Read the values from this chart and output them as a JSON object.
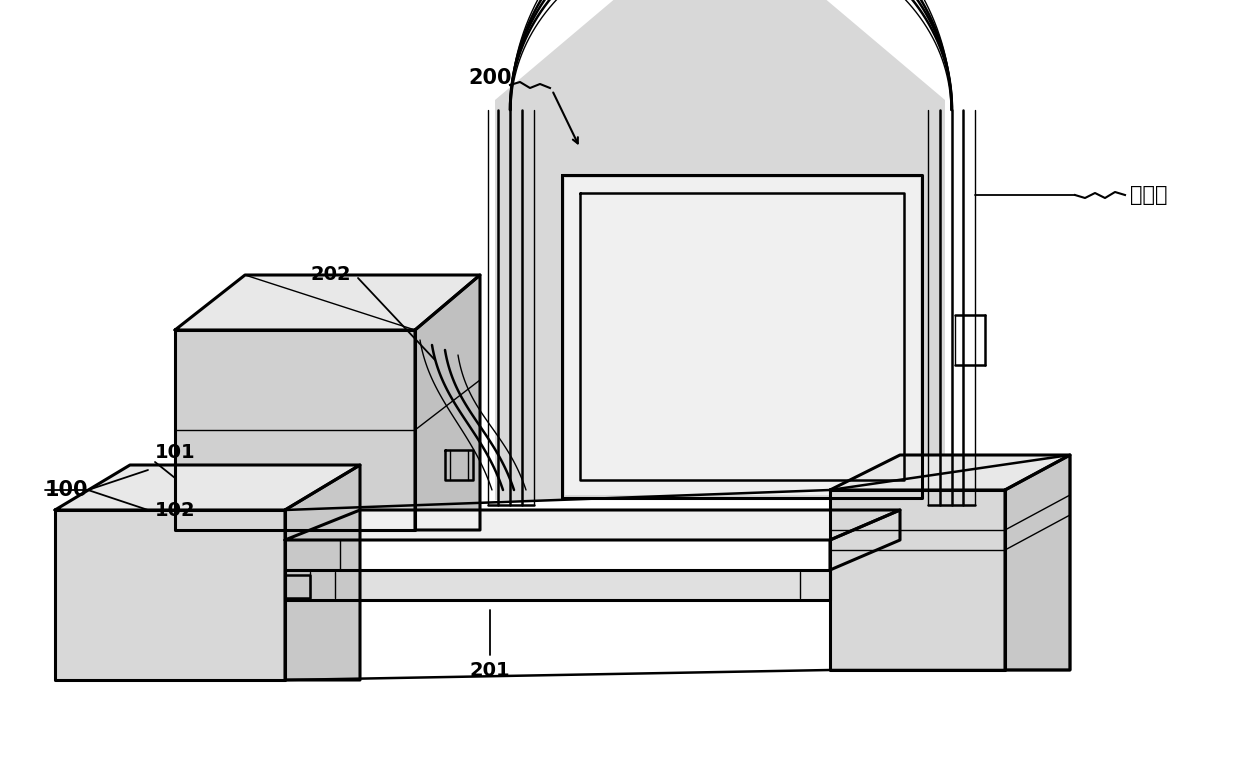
{
  "background_color": "#ffffff",
  "line_color": "#000000",
  "fig_width": 12.4,
  "fig_height": 7.6,
  "lw_main": 1.8,
  "lw_thick": 2.2,
  "lw_thin": 1.0,
  "font_size": 14,
  "font_size_cn": 15
}
